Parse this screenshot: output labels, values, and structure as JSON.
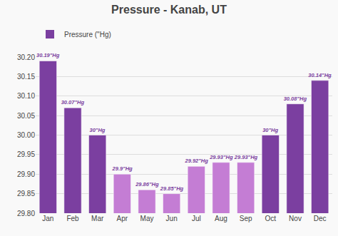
{
  "chart_data": {
    "type": "bar",
    "title": "Pressure - Kanab, UT",
    "categories": [
      "Jan",
      "Feb",
      "Mar",
      "Apr",
      "May",
      "Jun",
      "Jul",
      "Aug",
      "Sep",
      "Oct",
      "Nov",
      "Dec"
    ],
    "series": [
      {
        "name": "Pressure (\"Hg)",
        "color": "#7b3fa0",
        "colors": [
          "#7b3fa0",
          "#7b3fa0",
          "#7b3fa0",
          "#c47dd4",
          "#c47dd4",
          "#c47dd4",
          "#c47dd4",
          "#c47dd4",
          "#c47dd4",
          "#7b3fa0",
          "#7b3fa0",
          "#7b3fa0"
        ],
        "values": [
          30.19,
          30.07,
          30.0,
          29.9,
          29.86,
          29.85,
          29.92,
          29.93,
          29.93,
          30.0,
          30.08,
          30.14
        ],
        "value_labels": [
          "30.19\"Hg",
          "30.07\"Hg",
          "30\"Hg",
          "29.9\"Hg",
          "29.86\"Hg",
          "29.85\"Hg",
          "29.92\"Hg",
          "29.93\"Hg",
          "29.93\"Hg",
          "30\"Hg",
          "30.08\"Hg",
          "30.14\"Hg"
        ]
      }
    ],
    "ylim": [
      29.8,
      30.2
    ],
    "yticks": [
      {
        "value": 29.8,
        "label": "29.80"
      },
      29.85,
      {
        "value": 29.9,
        "label": "29.90"
      },
      29.95,
      {
        "value": 30.0,
        "label": "30.00"
      },
      30.05,
      {
        "value": 30.1,
        "label": "30.10"
      },
      30.15,
      {
        "value": 30.2,
        "label": "30.20"
      }
    ],
    "grid": true,
    "legend": "upper left",
    "data_labels": true
  }
}
